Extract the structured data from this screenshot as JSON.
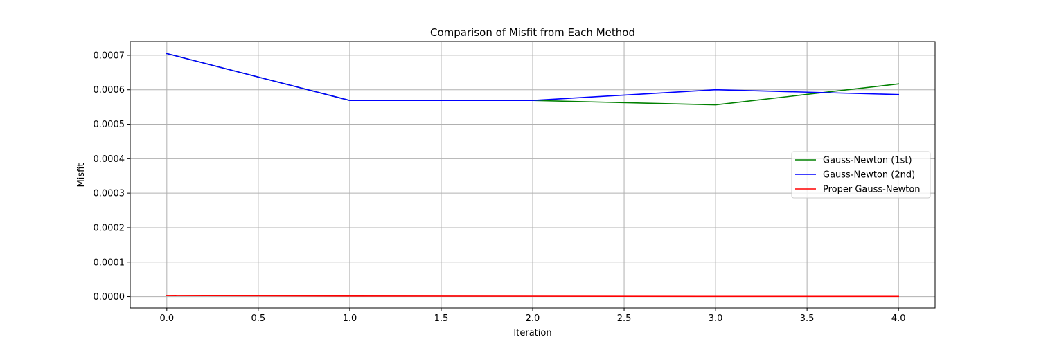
{
  "chart_data": {
    "type": "line",
    "title": "Comparison of Misfit from Each Method",
    "xlabel": "Iteration",
    "ylabel": "Misfit",
    "xlim": [
      -0.2,
      4.2
    ],
    "ylim": [
      -3.3e-05,
      0.00074
    ],
    "xticks": [
      0.0,
      0.5,
      1.0,
      1.5,
      2.0,
      2.5,
      3.0,
      3.5,
      4.0
    ],
    "xtick_labels": [
      "0.0",
      "0.5",
      "1.0",
      "1.5",
      "2.0",
      "2.5",
      "3.0",
      "3.5",
      "4.0"
    ],
    "yticks": [
      0.0,
      0.0001,
      0.0002,
      0.0003,
      0.0004,
      0.0005,
      0.0006,
      0.0007
    ],
    "ytick_labels": [
      "0.0000",
      "0.0001",
      "0.0002",
      "0.0003",
      "0.0004",
      "0.0005",
      "0.0006",
      "0.0007"
    ],
    "grid": true,
    "legend_position": "center-right",
    "x": [
      0,
      1,
      2,
      3,
      4
    ],
    "series": [
      {
        "name": "Gauss-Newton (1st)",
        "color": "#008000",
        "values": [
          0.000705,
          0.000569,
          0.000569,
          0.000556,
          0.000617
        ]
      },
      {
        "name": "Gauss-Newton (2nd)",
        "color": "#0000ff",
        "values": [
          0.000705,
          0.000569,
          0.000569,
          0.0006,
          0.000586
        ]
      },
      {
        "name": "Proper Gauss-Newton",
        "color": "#ff0000",
        "values": [
          3e-06,
          1.5e-06,
          1e-06,
          5e-07,
          5e-07
        ]
      }
    ]
  }
}
